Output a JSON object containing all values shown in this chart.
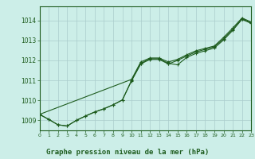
{
  "bg_color": "#cceee8",
  "grid_color": "#aacccc",
  "line_color": "#1e5c1e",
  "title": "Graphe pression niveau de la mer (hPa)",
  "xlim": [
    0,
    23
  ],
  "ylim": [
    1008.5,
    1014.7
  ],
  "yticks": [
    1009,
    1010,
    1011,
    1012,
    1013,
    1014
  ],
  "xticks": [
    0,
    1,
    2,
    3,
    4,
    5,
    6,
    7,
    8,
    9,
    10,
    11,
    12,
    13,
    14,
    15,
    16,
    17,
    18,
    19,
    20,
    21,
    22,
    23
  ],
  "line1": [
    1009.3,
    1009.05,
    1008.78,
    1008.72,
    1009.0,
    1009.22,
    1009.42,
    1009.58,
    1009.78,
    1010.02,
    1011.0,
    1011.85,
    1012.08,
    1012.08,
    1011.85,
    1011.78,
    1012.15,
    1012.35,
    1012.48,
    1012.62,
    1013.02,
    1013.5,
    1014.05,
    1013.85
  ],
  "line2_x": [
    0,
    1,
    2,
    3,
    4,
    5,
    6,
    7,
    8,
    9,
    10,
    11,
    12,
    13,
    14,
    15,
    16,
    17,
    18,
    19,
    20,
    21,
    22,
    23
  ],
  "line2": [
    1009.3,
    1009.05,
    1008.78,
    1008.72,
    1009.0,
    1009.22,
    1009.42,
    1009.58,
    1009.78,
    1010.02,
    1010.98,
    1011.82,
    1012.05,
    1012.05,
    1011.82,
    1012.0,
    1012.22,
    1012.42,
    1012.55,
    1012.68,
    1013.08,
    1013.55,
    1014.08,
    1013.88
  ],
  "line3_x": [
    0,
    10,
    11,
    12,
    13,
    14,
    15,
    16,
    17,
    18,
    19,
    20,
    21,
    22,
    23
  ],
  "line3": [
    1009.3,
    1011.05,
    1011.92,
    1012.12,
    1012.12,
    1011.92,
    1012.05,
    1012.28,
    1012.48,
    1012.6,
    1012.72,
    1013.15,
    1013.62,
    1014.12,
    1013.92
  ]
}
